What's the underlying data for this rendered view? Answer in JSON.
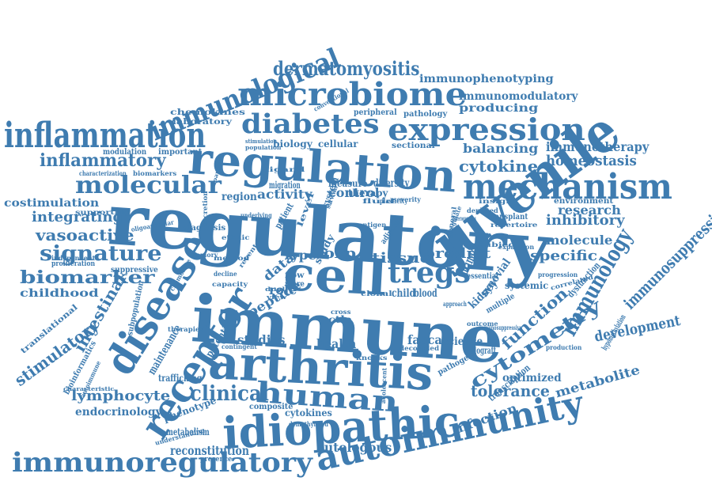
{
  "colors": {
    "word": "#3f7cb0",
    "background": "#ffffff"
  },
  "words": [
    "regulatory",
    "immune",
    "juvenile",
    "arthritis",
    "regulation",
    "cell",
    "idiopathic",
    "autoimmunity",
    "receptor",
    "disease",
    "human",
    "microbiome",
    "inflammation",
    "mechanism",
    "expression",
    "immunoregulatory",
    "diabetes",
    "immunological",
    "molecular",
    "tregs",
    "immunology",
    "cytometry",
    "signature",
    "inflammatory",
    "biomarker",
    "function",
    "intestinal",
    "stimulatory",
    "dermatomyositis",
    "immunosuppression",
    "clinical",
    "specific",
    "peptide",
    "tolerance",
    "foxp",
    "tissue",
    "vasoactive",
    "integrating",
    "cytokine",
    "homeostasis",
    "immunophenotyping",
    "immunomodulatory",
    "producing",
    "balancing",
    "immunotherapy",
    "inhibitory",
    "molecule",
    "research",
    "lymphocyte",
    "development",
    "metabolite",
    "infection",
    "reconstitution",
    "autologous",
    "costimulation",
    "childhood",
    "activity",
    "control",
    "region",
    "type",
    "data",
    "role",
    "predict",
    "studies",
    "health",
    "faecal",
    "science",
    "optimized",
    "endocrinology",
    "maintenance",
    "potential",
    "trafficking",
    "phenotype",
    "metabolism",
    "composite",
    "cytokines",
    "chemokines",
    "laboratory",
    "biology",
    "cellular",
    "sectional",
    "peripheral",
    "pathology",
    "stimulation",
    "population",
    "modulation",
    "important",
    "characterization",
    "biomarkers",
    "measure",
    "diversity",
    "therapy",
    "migration",
    "kidney",
    "synovial",
    "child",
    "blood",
    "ctla",
    "urinary",
    "multiple",
    "systemic",
    "essential",
    "general",
    "adipose",
    "dysfunction",
    "immunosuppressive",
    "transplant",
    "repertoire",
    "environment",
    "allograft",
    "production",
    "transcription",
    "hypomethylation",
    "translational",
    "bioinformatics",
    "autoimmune",
    "subpopulation",
    "proliferation",
    "independent",
    "suppressive",
    "diagnosis",
    "memory",
    "method",
    "recent",
    "decline",
    "capacity",
    "chemokine",
    "therapies",
    "contingent",
    "characteristic",
    "understanding",
    "demethylated",
    "adolescent",
    "pathogen",
    "knocks",
    "decoupled",
    "clonal",
    "cross",
    "flow",
    "more",
    "view",
    "level",
    "study",
    "system",
    "dual",
    "patient",
    "ethnic",
    "subject",
    "expansion",
    "correlated",
    "progression",
    "outcome",
    "approach",
    "ligand",
    "reparative",
    "secretion",
    "supporting",
    "oligoarticular",
    "underlying",
    "antigen",
    "survival",
    "fluid",
    "plasticity",
    "severity",
    "insight",
    "regulate",
    "conventional",
    "heterogeneous",
    "depleted",
    "presence"
  ]
}
